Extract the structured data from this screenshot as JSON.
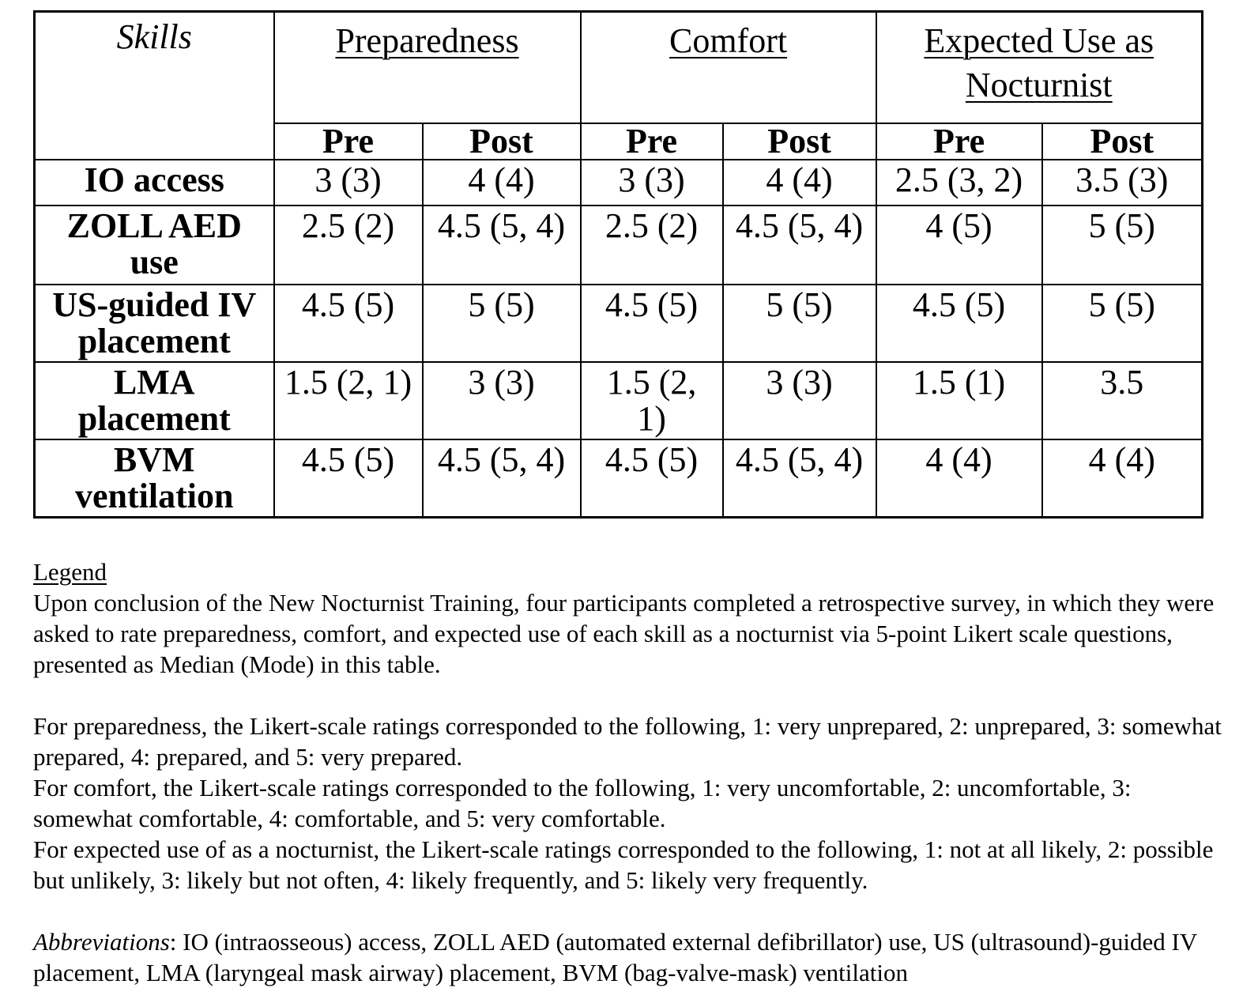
{
  "colors": {
    "background": "#ffffff",
    "text": "#000000",
    "border": "#000000"
  },
  "table": {
    "skills_header": "Skills",
    "groups": [
      {
        "label": "Preparedness",
        "sub": [
          "Pre",
          "Post"
        ]
      },
      {
        "label": "Comfort",
        "sub": [
          "Pre",
          "Post"
        ]
      },
      {
        "label": "Expected Use as Nocturnist",
        "sub": [
          "Pre",
          "Post"
        ]
      }
    ],
    "rows": [
      {
        "skill": "IO access",
        "values": [
          "3 (3)",
          "4 (4)",
          "3 (3)",
          "4 (4)",
          "2.5 (3, 2)",
          "3.5 (3)"
        ]
      },
      {
        "skill": "ZOLL AED\nuse",
        "values": [
          "2.5 (2)",
          "4.5 (5, 4)",
          "2.5 (2)",
          "4.5 (5, 4)",
          "4 (5)",
          "5 (5)"
        ]
      },
      {
        "skill": "US-guided IV\nplacement",
        "values": [
          "4.5 (5)",
          "5 (5)",
          "4.5 (5)",
          "5 (5)",
          "4.5 (5)",
          "5 (5)"
        ]
      },
      {
        "skill": "LMA\nplacement",
        "values": [
          "1.5 (2, 1)",
          "3 (3)",
          "1.5 (2,\n1)",
          "3 (3)",
          "1.5 (1)",
          "3.5"
        ]
      },
      {
        "skill": "BVM\nventilation",
        "values": [
          "4.5 (5)",
          "4.5 (5, 4)",
          "4.5 (5)",
          "4.5 (5, 4)",
          "4 (4)",
          "4 (4)"
        ]
      }
    ]
  },
  "legend": {
    "heading": "Legend",
    "para1": "Upon conclusion of the New Nocturnist Training, four participants completed a retrospective survey, in which they were asked to rate preparedness, comfort, and expected use of each skill as a nocturnist via 5-point Likert scale questions, presented as Median (Mode) in this table.",
    "likert_lines": [
      "For preparedness, the Likert-scale ratings corresponded to the following, 1: very unprepared, 2: unprepared, 3: somewhat prepared, 4: prepared, and 5: very prepared.",
      "For comfort, the Likert-scale ratings corresponded to the following, 1: very uncomfortable, 2: uncomfortable, 3: somewhat comfortable, 4: comfortable, and 5: very comfortable.",
      "For expected use of as a nocturnist, the Likert-scale ratings corresponded to the following, 1: not at all likely, 2: possible but unlikely, 3: likely but not often, 4: likely frequently, and 5: likely very frequently."
    ],
    "abbreviations_label": "Abbreviations",
    "abbreviations_text": ": IO (intraosseous) access, ZOLL AED (automated external defibrillator) use, US (ultrasound)-guided IV placement, LMA (laryngeal mask airway) placement, BVM (bag-valve-mask) ventilation"
  }
}
